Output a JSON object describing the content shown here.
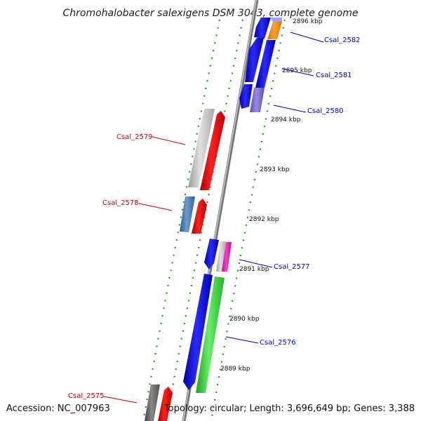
{
  "title": "Chromohalobacter salexigens DSM 3043, complete genome",
  "footer": {
    "accession": "Accession: NC_007963",
    "topology": "Topology: circular; Length: 3,696,649 bp; Genes: 3,388"
  },
  "colors": {
    "forward_label": "#0000cc",
    "reverse_label": "#cc0000",
    "tick": "#229922",
    "backbone": "#888888"
  },
  "kbp_labels": {
    "k2896": "2896 kbp",
    "k2895": "2895 kbp",
    "k2894": "2894 kbp",
    "k2893": "2893 kbp",
    "k2892": "2892 kbp",
    "k2891": "2891 kbp",
    "k2890": "2890 kbp",
    "k2889": "2889 kbp"
  },
  "genes": {
    "g2582": "Csal_2582",
    "g2581": "Csal_2581",
    "g2580": "Csal_2580",
    "g2579": "Csal_2579",
    "g2578": "Csal_2578",
    "g2577": "Csal_2577",
    "g2576": "Csal_2576",
    "g2575": "Csal_2575"
  }
}
